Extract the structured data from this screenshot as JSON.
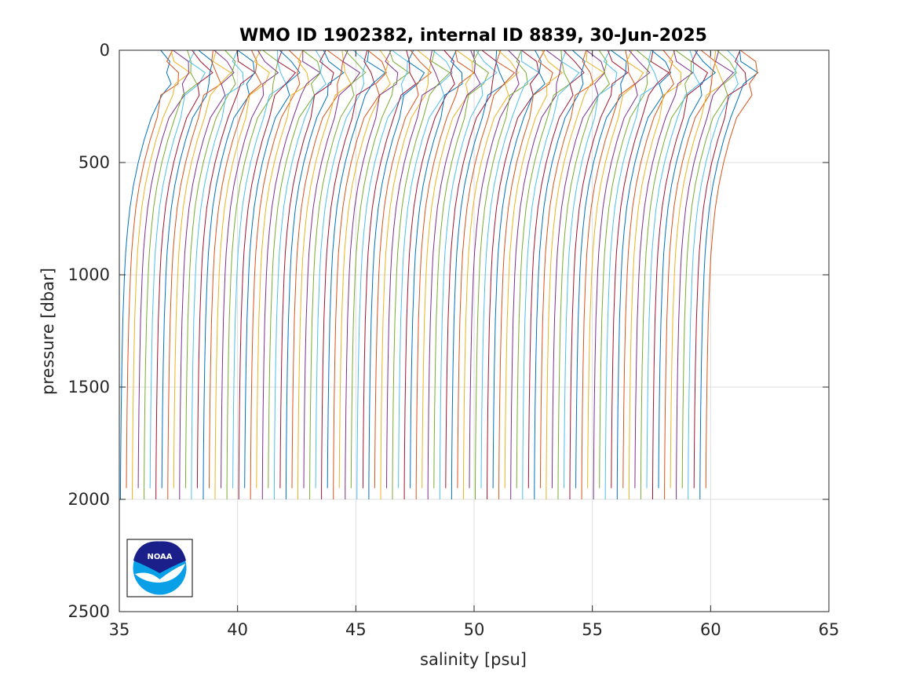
{
  "chart_data": {
    "type": "line",
    "title": "WMO ID 1902382, internal ID 8839, 30-Jun-2025",
    "xlabel": "salinity [psu]",
    "ylabel": "pressure [dbar]",
    "xlim": [
      35,
      65
    ],
    "ylim": [
      0,
      2500
    ],
    "y_reversed": true,
    "grid": true,
    "xticks": [
      35,
      40,
      45,
      50,
      55,
      60,
      65
    ],
    "yticks": [
      0,
      500,
      1000,
      1500,
      2000,
      2500
    ],
    "xtick_labels": [
      "35",
      "40",
      "45",
      "50",
      "55",
      "60",
      "65"
    ],
    "ytick_labels": [
      "0",
      "500",
      "1000",
      "1500",
      "2000",
      "2500"
    ],
    "description_of_series": "Offset salinity profiles, each shifted ~0.25 psu from the previous one",
    "profile_count": 100,
    "profile_offset_psu": 0.25,
    "first_profile_deep_salinity": 35.05,
    "profile_shape": {
      "pressure": [
        0,
        50,
        100,
        150,
        200,
        300,
        400,
        500,
        600,
        700,
        800,
        900,
        1000,
        1200,
        1400,
        1600,
        1800,
        1950,
        2000
      ],
      "salinity_offset_from_deep": [
        1.7,
        1.9,
        2.2,
        2.0,
        1.7,
        1.3,
        1.0,
        0.75,
        0.55,
        0.4,
        0.3,
        0.22,
        0.17,
        0.1,
        0.06,
        0.03,
        0.01,
        0.0,
        0.0
      ]
    },
    "colors": [
      "#0072BD",
      "#D95319",
      "#EDB120",
      "#7E2F8E",
      "#77AC30",
      "#4DBEEE",
      "#A2142F"
    ]
  },
  "logo": {
    "text": "NOAA",
    "colors": {
      "dark": "#1B1F8A",
      "light": "#0AA0E8",
      "white": "#ffffff"
    }
  },
  "colors": {
    "axis": "#262626",
    "grid": "#dedede",
    "background": "#ffffff"
  }
}
